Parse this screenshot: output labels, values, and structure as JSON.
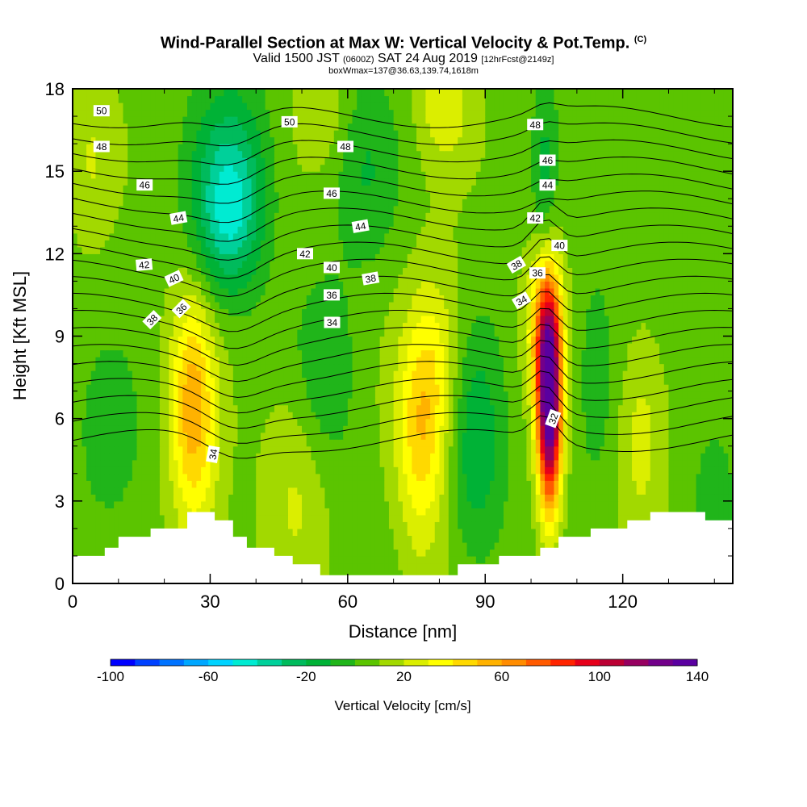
{
  "title": {
    "main": "Wind-Parallel Section at Max W: Vertical Velocity & Pot.Temp.",
    "copyright": "(C)",
    "valid_prefix": "Valid 1500 JST",
    "valid_utc": "(0600Z)",
    "valid_date": "SAT 24 Aug 2019",
    "forecast": "[12hrFcst@2149z]",
    "box_info": "boxWmax=137@36.63,139.74,1618m"
  },
  "chart_data": {
    "type": "heatmap",
    "xlabel": "Distance [nm]",
    "ylabel": "Height [Kft MSL]",
    "xlim": [
      0,
      144
    ],
    "ylim": [
      0,
      18
    ],
    "x_ticks": [
      0,
      30,
      60,
      90,
      120
    ],
    "y_ticks": [
      0,
      3,
      6,
      9,
      12,
      15,
      18
    ],
    "grid": false,
    "colorbar": {
      "label": "Vertical Velocity [cm/s]",
      "ticks": [
        -100,
        -60,
        -20,
        20,
        60,
        100,
        140
      ],
      "min": -100,
      "max": 140,
      "step": 10,
      "colors": [
        "#0000ff",
        "#0041ff",
        "#0073ff",
        "#00a7ff",
        "#00d3ff",
        "#00ebd2",
        "#00d09a",
        "#00bb5c",
        "#00b236",
        "#20b51a",
        "#5bc400",
        "#a2d900",
        "#dbee00",
        "#ffff00",
        "#ffd900",
        "#ffb200",
        "#ff8c00",
        "#ff5a00",
        "#ff2400",
        "#e6001a",
        "#bb0033",
        "#960060",
        "#72008a",
        "#5a00a0"
      ]
    },
    "terrain_kft": [
      [
        0,
        1.0
      ],
      [
        7,
        1.0
      ],
      [
        7,
        1.3
      ],
      [
        10,
        1.3
      ],
      [
        10,
        1.7
      ],
      [
        17,
        1.7
      ],
      [
        17,
        2.0
      ],
      [
        25,
        2.0
      ],
      [
        25,
        2.6
      ],
      [
        31,
        2.6
      ],
      [
        31,
        2.3
      ],
      [
        35,
        2.3
      ],
      [
        35,
        1.7
      ],
      [
        38,
        1.7
      ],
      [
        38,
        1.3
      ],
      [
        44,
        1.3
      ],
      [
        44,
        1.0
      ],
      [
        48,
        1.0
      ],
      [
        48,
        0.7
      ],
      [
        54,
        0.7
      ],
      [
        54,
        0.3
      ],
      [
        84,
        0.3
      ],
      [
        84,
        0.7
      ],
      [
        93,
        0.7
      ],
      [
        93,
        1.0
      ],
      [
        102,
        1.0
      ],
      [
        102,
        1.3
      ],
      [
        106,
        1.3
      ],
      [
        106,
        1.7
      ],
      [
        113,
        1.7
      ],
      [
        113,
        2.0
      ],
      [
        121,
        2.0
      ],
      [
        121,
        2.3
      ],
      [
        126,
        2.3
      ],
      [
        126,
        2.6
      ],
      [
        138,
        2.6
      ],
      [
        138,
        2.3
      ],
      [
        144,
        2.3
      ]
    ],
    "features": [
      {
        "kind": "updraft",
        "x": 26,
        "y": 6.8,
        "wx": 3.2,
        "wy": 2.6,
        "peak": 35
      },
      {
        "kind": "updraft",
        "x": 27,
        "y": 4.5,
        "wx": 4.0,
        "wy": 3.2,
        "peak": 18
      },
      {
        "kind": "updraft",
        "x": 76,
        "y": 5.5,
        "wx": 3.8,
        "wy": 3.0,
        "peak": 38
      },
      {
        "kind": "updraft",
        "x": 80,
        "y": 8.0,
        "wx": 4.0,
        "wy": 2.5,
        "peak": 18
      },
      {
        "kind": "updraft",
        "x": 104,
        "y": 6.5,
        "wx": 1.8,
        "wy": 2.6,
        "peak": 137
      },
      {
        "kind": "updraft",
        "x": 103,
        "y": 9.5,
        "wx": 2.5,
        "wy": 2.0,
        "peak": 50
      },
      {
        "kind": "updraft",
        "x": 49,
        "y": 4.0,
        "wx": 5.0,
        "wy": 3.0,
        "peak": 15
      },
      {
        "kind": "updraft",
        "x": 124,
        "y": 5.5,
        "wx": 3.5,
        "wy": 2.5,
        "peak": 18
      },
      {
        "kind": "updraft",
        "x": 4,
        "y": 15.5,
        "wx": 3.0,
        "wy": 2.2,
        "peak": 12
      },
      {
        "kind": "updraft",
        "x": 81,
        "y": 17.5,
        "wx": 4.0,
        "wy": 1.5,
        "peak": 20
      },
      {
        "kind": "updraft",
        "x": 55,
        "y": 17.3,
        "wx": 4.0,
        "wy": 1.5,
        "peak": 12
      },
      {
        "kind": "downdraft",
        "x": 34,
        "y": 13.3,
        "wx": 5.0,
        "wy": 2.0,
        "peak": -38
      },
      {
        "kind": "downdraft",
        "x": 35,
        "y": 15.5,
        "wx": 6.0,
        "wy": 2.5,
        "peak": -22
      },
      {
        "kind": "downdraft",
        "x": 64,
        "y": 15.0,
        "wx": 5.0,
        "wy": 2.5,
        "peak": -15
      },
      {
        "kind": "downdraft",
        "x": 88,
        "y": 5.0,
        "wx": 4.5,
        "wy": 3.0,
        "peak": -25
      },
      {
        "kind": "downdraft",
        "x": 55,
        "y": 7.5,
        "wx": 5.0,
        "wy": 2.5,
        "peak": -18
      },
      {
        "kind": "downdraft",
        "x": 103,
        "y": 14.5,
        "wx": 1.8,
        "wy": 3.0,
        "peak": -18
      },
      {
        "kind": "downdraft",
        "x": 114,
        "y": 7.5,
        "wx": 3.0,
        "wy": 3.0,
        "peak": -12
      },
      {
        "kind": "downdraft",
        "x": 8,
        "y": 5.0,
        "wx": 5.0,
        "wy": 2.5,
        "peak": -12
      },
      {
        "kind": "downdraft",
        "x": 140,
        "y": 3.5,
        "wx": 3.5,
        "wy": 2.0,
        "peak": -12
      }
    ],
    "contour_labels": [
      {
        "text": "50",
        "x": 6.3,
        "y": 17.2,
        "angle": 0
      },
      {
        "text": "48",
        "x": 6.3,
        "y": 15.9,
        "angle": 0
      },
      {
        "text": "46",
        "x": 15.7,
        "y": 14.5,
        "angle": 0
      },
      {
        "text": "44",
        "x": 23.1,
        "y": 13.3,
        "angle": -10
      },
      {
        "text": "42",
        "x": 15.6,
        "y": 11.6,
        "angle": -5
      },
      {
        "text": "40",
        "x": 22.1,
        "y": 11.1,
        "angle": -25
      },
      {
        "text": "36",
        "x": 23.7,
        "y": 10.0,
        "angle": -45
      },
      {
        "text": "38",
        "x": 17.3,
        "y": 9.6,
        "angle": -45
      },
      {
        "text": "50",
        "x": 47.3,
        "y": 16.8,
        "angle": 0
      },
      {
        "text": "48",
        "x": 59.5,
        "y": 15.9,
        "angle": 0
      },
      {
        "text": "46",
        "x": 56.5,
        "y": 14.2,
        "angle": 0
      },
      {
        "text": "44",
        "x": 62.8,
        "y": 13.0,
        "angle": -10
      },
      {
        "text": "42",
        "x": 50.7,
        "y": 12.0,
        "angle": 0
      },
      {
        "text": "40",
        "x": 56.5,
        "y": 11.5,
        "angle": 0
      },
      {
        "text": "38",
        "x": 65.0,
        "y": 11.1,
        "angle": -10
      },
      {
        "text": "36",
        "x": 56.5,
        "y": 10.5,
        "angle": 0
      },
      {
        "text": "34",
        "x": 56.6,
        "y": 9.5,
        "angle": 0
      },
      {
        "text": "48",
        "x": 100.9,
        "y": 16.7,
        "angle": 0
      },
      {
        "text": "46",
        "x": 103.6,
        "y": 15.4,
        "angle": 0
      },
      {
        "text": "44",
        "x": 103.6,
        "y": 14.5,
        "angle": 0
      },
      {
        "text": "42",
        "x": 100.9,
        "y": 13.3,
        "angle": 0
      },
      {
        "text": "40",
        "x": 106.2,
        "y": 12.3,
        "angle": 0
      },
      {
        "text": "38",
        "x": 96.8,
        "y": 11.6,
        "angle": -30
      },
      {
        "text": "36",
        "x": 101.4,
        "y": 11.3,
        "angle": 0
      },
      {
        "text": "34",
        "x": 97.9,
        "y": 10.3,
        "angle": -30
      },
      {
        "text": "32",
        "x": 104.8,
        "y": 6.0,
        "angle": -70
      },
      {
        "text": "34",
        "x": 30.6,
        "y": 4.7,
        "angle": -80
      }
    ]
  }
}
